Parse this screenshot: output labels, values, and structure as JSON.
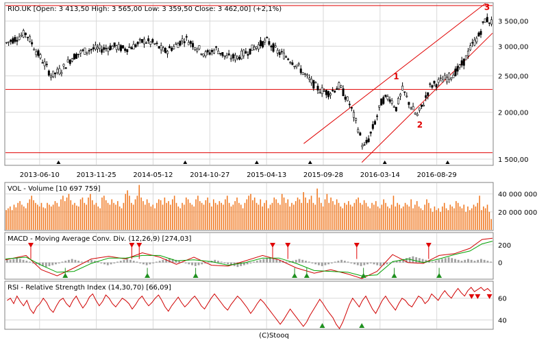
{
  "footer": "(C)Stooq",
  "colors": {
    "candle": "#000000",
    "trendline": "#e00000",
    "volume": "#f07820",
    "macd_line": "#d00000",
    "signal_line": "#00a000",
    "histogram": "#a0a0a0",
    "rsi": "#d00000",
    "sell_marker": "#e00000",
    "buy_marker": "#209020"
  },
  "chart_data": [
    {
      "type": "candlestick",
      "title": "RIO.UK [Open: 3 413,50  High: 3 565,00  Low: 3 359,50  Close: 3 462,00] (+2,1%)",
      "scale": "log",
      "ylim": [
        1450,
        3900
      ],
      "yticks": [
        "3 500,00",
        "3 000,00",
        "2 500,00",
        "2 000,00",
        "1 500,00"
      ],
      "ytick_values": [
        3500,
        3000,
        2500,
        2000,
        1500
      ],
      "xticks": [
        "2013-06-10",
        "2013-11-25",
        "2014-05-12",
        "2014-10-27",
        "2015-04-13",
        "2015-09-28",
        "2016-03-14",
        "2016-08-29"
      ],
      "x_range": [
        "2013-03-01",
        "2017-02-10"
      ],
      "series": [
        {
          "x": [
            "2013-03-01",
            "2013-04-01",
            "2013-05-01",
            "2013-06-01",
            "2013-06-24",
            "2013-07-15",
            "2013-08-15",
            "2013-09-15",
            "2013-10-15",
            "2013-11-15",
            "2013-12-15",
            "2014-01-15",
            "2014-02-15",
            "2014-03-15",
            "2014-04-15",
            "2014-05-15",
            "2014-06-15",
            "2014-07-15",
            "2014-08-15",
            "2014-09-15",
            "2014-10-15",
            "2014-11-15",
            "2014-12-15",
            "2015-01-15",
            "2015-02-15",
            "2015-03-15",
            "2015-04-15",
            "2015-05-15",
            "2015-06-15",
            "2015-07-15",
            "2015-08-15",
            "2015-09-15",
            "2015-10-15",
            "2015-11-15",
            "2015-12-15",
            "2016-01-10",
            "2016-01-25",
            "2016-02-10",
            "2016-03-01",
            "2016-03-20",
            "2016-04-10",
            "2016-05-01",
            "2016-05-20",
            "2016-06-10",
            "2016-07-01",
            "2016-07-20",
            "2016-08-10",
            "2016-09-01",
            "2016-09-20",
            "2016-10-10",
            "2016-11-01",
            "2016-11-20",
            "2016-12-10",
            "2017-01-01",
            "2017-01-20",
            "2017-02-10"
          ],
          "values": [
            3050,
            3150,
            3250,
            2900,
            2700,
            2500,
            2600,
            2800,
            2900,
            2950,
            2950,
            3000,
            2950,
            3000,
            3100,
            3050,
            2900,
            3000,
            3150,
            3000,
            2850,
            2950,
            2800,
            2800,
            2900,
            3000,
            3100,
            2900,
            2800,
            2650,
            2450,
            2300,
            2250,
            2350,
            2100,
            1800,
            1600,
            1700,
            1900,
            2150,
            2200,
            2050,
            2300,
            2100,
            1950,
            2100,
            2350,
            2400,
            2450,
            2500,
            2600,
            2750,
            3000,
            3200,
            3550,
            3462
          ]
        }
      ],
      "annotations": [
        {
          "label": "1",
          "x": "2016-05-01",
          "value": 2450
        },
        {
          "label": "2",
          "x": "2016-07-10",
          "value": 1820
        },
        {
          "label": "3",
          "x": "2017-01-25",
          "value": 3750
        }
      ],
      "horizontal_lines": [
        3850,
        2300,
        1560
      ],
      "channel": {
        "lower": [
          [
            "2016-01-20",
            1470
          ],
          [
            "2017-02-10",
            3250
          ]
        ],
        "upper": [
          [
            "2015-08-01",
            1650
          ],
          [
            "2017-01-20",
            3900
          ]
        ]
      },
      "triangle_markers": [
        "2013-08-05",
        "2014-08-15",
        "2015-03-15",
        "2015-08-20",
        "2016-03-28",
        "2016-09-30"
      ]
    },
    {
      "type": "bar",
      "title": "VOL - Volume [10 697 759]",
      "ylim": [
        0,
        52000000
      ],
      "yticks": [
        "40 000 000",
        "20 000 000"
      ],
      "ytick_values": [
        40000000,
        20000000
      ],
      "series": [
        {
          "name": "Volume",
          "values": [
            22,
            24,
            26,
            22,
            28,
            25,
            30,
            32,
            28,
            26,
            24,
            30,
            34,
            38,
            33,
            30,
            28,
            26,
            30,
            25,
            24,
            30,
            28,
            26,
            28,
            32,
            30,
            26,
            34,
            38,
            32,
            36,
            40,
            33,
            28,
            30,
            27,
            26,
            34,
            36,
            30,
            28,
            36,
            40,
            33,
            28,
            30,
            26,
            24,
            36,
            38,
            33,
            30,
            28,
            34,
            30,
            28,
            32,
            26,
            24,
            30,
            40,
            44,
            38,
            30,
            28,
            34,
            38,
            50,
            36,
            32,
            28,
            34,
            30,
            26,
            28,
            24,
            30,
            34,
            33,
            28,
            36,
            30,
            32,
            28,
            34,
            38,
            30,
            26,
            24,
            30,
            28,
            36,
            34,
            30,
            28,
            26,
            34,
            38,
            32,
            30,
            28,
            33,
            36,
            30,
            26,
            34,
            30,
            28,
            32,
            30,
            28,
            34,
            38,
            30,
            26,
            28,
            32,
            36,
            30,
            28,
            24,
            30,
            34,
            38,
            40,
            33,
            36,
            30,
            28,
            34,
            26,
            30,
            33,
            24,
            28,
            30,
            36,
            34,
            30,
            28,
            40,
            36,
            30,
            34,
            26,
            30,
            28,
            32,
            36,
            34,
            30,
            42,
            36,
            30,
            34,
            38,
            30,
            28,
            46,
            36,
            30,
            26,
            34,
            40,
            30,
            36,
            32,
            28,
            34,
            30,
            26,
            24,
            30,
            28,
            32,
            28,
            26,
            30,
            34,
            36,
            30,
            28,
            33,
            30,
            26,
            24,
            30,
            28,
            32,
            26,
            24,
            28,
            34,
            30,
            26,
            24,
            28,
            38,
            26,
            30,
            28,
            24,
            26,
            30,
            28,
            26,
            34,
            24,
            28,
            32,
            26,
            24,
            22,
            28,
            34,
            30,
            24,
            20,
            26,
            22,
            24,
            20,
            26,
            30,
            24,
            22,
            28,
            26,
            24,
            32,
            30,
            26,
            24,
            28,
            20,
            26,
            22,
            24,
            28,
            26,
            30,
            38,
            22,
            26,
            24,
            28,
            20,
            12
          ]
        }
      ]
    },
    {
      "type": "line",
      "title": "MACD - Moving Average Conv. Div. (12,26,9) [274,03]",
      "ylim": [
        -180,
        330
      ],
      "yticks": [
        "200",
        "0"
      ],
      "ytick_values": [
        200,
        0
      ],
      "x_range": [
        "2013-03-01",
        "2017-02-10"
      ],
      "series": [
        {
          "name": "MACD",
          "x": [
            "2013-03-01",
            "2013-05-01",
            "2013-06-15",
            "2013-08-01",
            "2013-09-20",
            "2013-11-10",
            "2014-01-01",
            "2014-02-20",
            "2014-04-10",
            "2014-06-01",
            "2014-07-20",
            "2014-09-10",
            "2014-11-01",
            "2014-12-20",
            "2015-02-10",
            "2015-04-01",
            "2015-05-20",
            "2015-07-10",
            "2015-09-01",
            "2015-10-20",
            "2015-12-10",
            "2016-01-20",
            "2016-03-05",
            "2016-04-20",
            "2016-06-05",
            "2016-07-20",
            "2016-09-05",
            "2016-10-20",
            "2016-12-05",
            "2017-01-10",
            "2017-02-10"
          ],
          "values": [
            30,
            80,
            -80,
            -150,
            -60,
            40,
            70,
            40,
            110,
            60,
            -20,
            60,
            -30,
            -40,
            20,
            80,
            30,
            -60,
            -120,
            -80,
            -130,
            -180,
            -100,
            90,
            0,
            -10,
            80,
            100,
            160,
            260,
            274
          ]
        },
        {
          "name": "Signal",
          "x": [
            "2013-03-01",
            "2013-05-01",
            "2013-06-15",
            "2013-08-01",
            "2013-09-20",
            "2013-11-10",
            "2014-01-01",
            "2014-02-20",
            "2014-04-10",
            "2014-06-01",
            "2014-07-20",
            "2014-09-10",
            "2014-11-01",
            "2014-12-20",
            "2015-02-10",
            "2015-04-01",
            "2015-05-20",
            "2015-07-10",
            "2015-09-01",
            "2015-10-20",
            "2015-12-10",
            "2016-01-20",
            "2016-03-05",
            "2016-04-20",
            "2016-06-05",
            "2016-07-20",
            "2016-09-05",
            "2016-10-20",
            "2016-12-05",
            "2017-01-10",
            "2017-02-10"
          ],
          "values": [
            40,
            60,
            -30,
            -110,
            -100,
            -10,
            50,
            50,
            80,
            80,
            20,
            30,
            10,
            -30,
            0,
            50,
            50,
            -10,
            -90,
            -100,
            -110,
            -150,
            -140,
            10,
            40,
            0,
            40,
            90,
            130,
            210,
            240
          ]
        }
      ],
      "histogram": [
        6,
        6,
        8,
        10,
        8,
        6,
        4,
        2,
        -2,
        -4,
        -6,
        -8,
        -10,
        -8,
        -6,
        -4,
        -2,
        2,
        4,
        6,
        8,
        6,
        4,
        2,
        2,
        4,
        6,
        4,
        2,
        -2,
        -4,
        -6,
        -4,
        -2,
        2,
        4,
        6,
        8,
        6,
        4,
        2,
        -2,
        -4,
        -6,
        -4,
        -2,
        2,
        4,
        6,
        8,
        10,
        8,
        6,
        4,
        2,
        -2,
        -4,
        -6,
        -8,
        -6,
        -4,
        -2,
        2,
        4,
        6,
        4,
        2,
        -2,
        -4,
        -6,
        -8,
        -10,
        -8,
        -6,
        -4,
        -2,
        2,
        4,
        6,
        8,
        10,
        12,
        10,
        8,
        6,
        4,
        2,
        2,
        4,
        6,
        8,
        6,
        4,
        2,
        -2,
        -4,
        -6,
        -8,
        -6,
        -4,
        -2,
        2,
        4,
        6,
        4,
        2,
        -2,
        -4,
        -6,
        -8,
        -6,
        -4,
        -2,
        -4,
        -6,
        -8,
        -6,
        -4,
        -2,
        2,
        4,
        6,
        8,
        10,
        12,
        14,
        12,
        10,
        8,
        6,
        4,
        2,
        4,
        6,
        8,
        10,
        12,
        10,
        8,
        6,
        4,
        6,
        8,
        6,
        4,
        6,
        8,
        6,
        4,
        2
      ],
      "sell_markers": [
        "2013-05-15",
        "2014-03-10",
        "2014-04-01",
        "2015-05-01",
        "2015-06-15",
        "2016-01-05",
        "2016-08-05"
      ],
      "buy_markers": [
        "2013-08-25",
        "2014-04-25",
        "2014-09-15",
        "2015-07-05",
        "2015-08-10",
        "2016-01-25",
        "2016-04-25",
        "2016-09-05"
      ]
    },
    {
      "type": "line",
      "title": "RSI - Relative Strength Index (14,30,70) [66,09]",
      "ylim": [
        32,
        75
      ],
      "yticks": [
        "60",
        "40"
      ],
      "ytick_values": [
        60,
        40
      ],
      "x_range": [
        "2013-03-01",
        "2017-02-10"
      ],
      "series": [
        {
          "name": "RSI",
          "values": [
            58,
            60,
            55,
            62,
            57,
            53,
            58,
            50,
            46,
            52,
            55,
            60,
            56,
            50,
            47,
            53,
            58,
            60,
            55,
            52,
            58,
            62,
            56,
            51,
            55,
            61,
            64,
            58,
            53,
            57,
            63,
            60,
            55,
            52,
            56,
            60,
            58,
            55,
            50,
            54,
            59,
            62,
            57,
            53,
            56,
            60,
            63,
            58,
            52,
            48,
            53,
            57,
            61,
            56,
            52,
            55,
            59,
            62,
            58,
            53,
            50,
            55,
            60,
            64,
            60,
            56,
            52,
            49,
            54,
            58,
            62,
            59,
            55,
            51,
            46,
            50,
            55,
            59,
            56,
            52,
            48,
            44,
            40,
            36,
            40,
            45,
            50,
            46,
            42,
            38,
            34,
            38,
            44,
            49,
            54,
            59,
            55,
            50,
            46,
            42,
            36,
            32,
            38,
            46,
            54,
            60,
            56,
            52,
            58,
            62,
            56,
            50,
            46,
            52,
            58,
            62,
            57,
            53,
            49,
            55,
            60,
            58,
            54,
            52,
            57,
            62,
            60,
            55,
            58,
            64,
            61,
            58,
            63,
            67,
            63,
            60,
            65,
            69,
            65,
            62,
            67,
            70,
            66,
            68,
            70,
            67,
            69,
            66
          ]
        }
      ],
      "sell_markers": [
        "2016-12-10",
        "2016-12-28",
        "2017-02-01"
      ],
      "buy_markers": [
        "2015-09-25",
        "2016-01-20"
      ]
    }
  ]
}
